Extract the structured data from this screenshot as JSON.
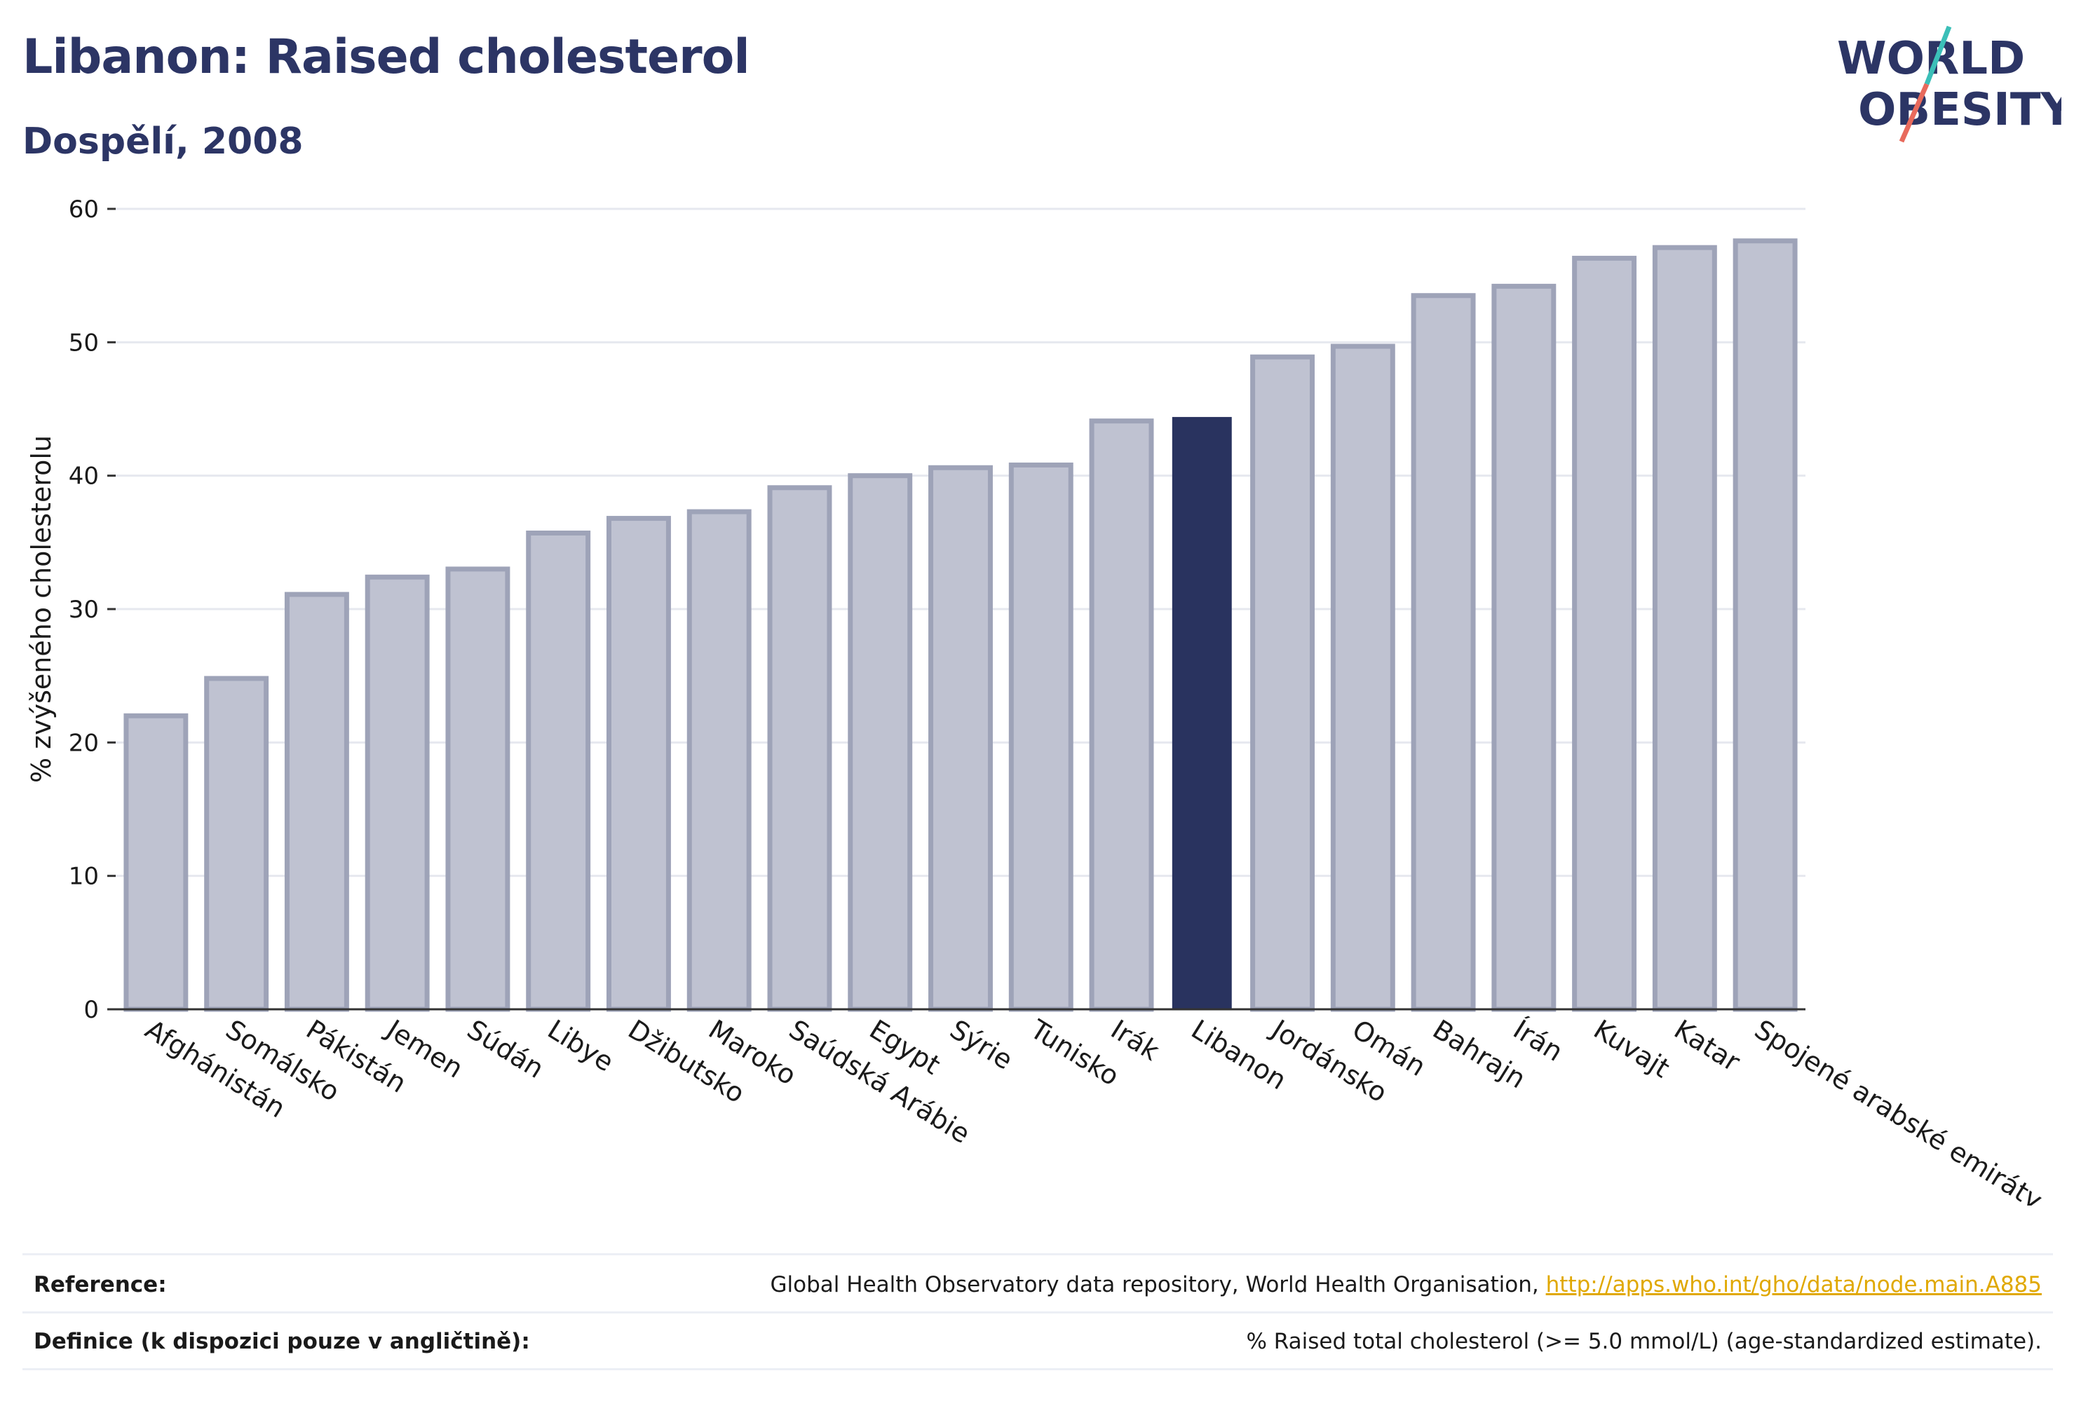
{
  "header": {
    "title": "Libanon: Raised cholesterol",
    "subtitle": "Dospělí, 2008"
  },
  "logo": {
    "line1": "WORLD",
    "line2": "OBESITY",
    "accent_teal": "#3bbfb8",
    "accent_red": "#e86a5c",
    "text_color": "#2c3565"
  },
  "chart_data": {
    "type": "bar",
    "ylabel": "% zvýšeného cholesterolu",
    "xlabel": "",
    "ylim": [
      0,
      60
    ],
    "yticks": [
      0,
      10,
      20,
      30,
      40,
      50,
      60
    ],
    "grid": true,
    "highlight": "Libanon",
    "colors": {
      "default": "#bfc2d1",
      "default_border": "#9ea3b8",
      "highlight": "#29335f",
      "grid": "#e6e8ef"
    },
    "categories": [
      "Afghánistán",
      "Somálsko",
      "Pákistán",
      "Jemen",
      "Súdán",
      "Libye",
      "Džibutsko",
      "Maroko",
      "Saúdská Arábie",
      "Egypt",
      "Sýrie",
      "Tunisko",
      "Irák",
      "Libanon",
      "Jordánsko",
      "Omán",
      "Bahrajn",
      "Írán",
      "Kuvajt",
      "Katar",
      "Spojené arabské emiráty"
    ],
    "values": [
      22.0,
      24.8,
      31.1,
      32.4,
      33.0,
      35.7,
      36.8,
      37.3,
      39.1,
      40.0,
      40.6,
      40.8,
      44.1,
      44.4,
      48.9,
      49.7,
      53.5,
      54.2,
      56.3,
      57.1,
      57.6
    ]
  },
  "footer": {
    "reference_label": "Reference:",
    "reference_text": "Global Health Observatory data repository, World Health Organisation, ",
    "reference_link": "http://apps.who.int/gho/data/node.main.A885",
    "definition_label": "Definice (k dispozici pouze v angličtině):",
    "definition_text": "% Raised total cholesterol (>= 5.0 mmol/L) (age-standardized estimate)."
  }
}
